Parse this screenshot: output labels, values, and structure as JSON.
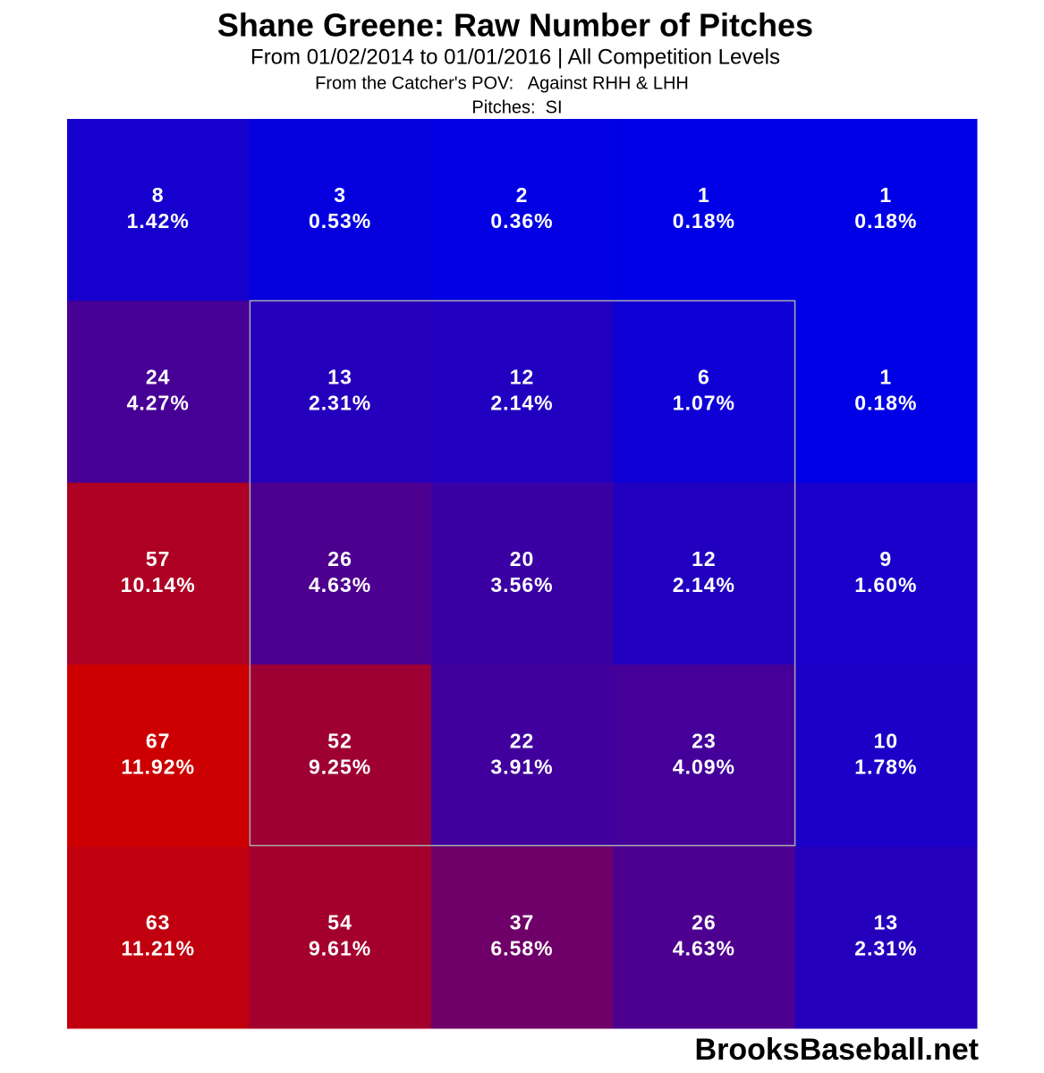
{
  "chart_data": {
    "type": "heatmap",
    "title": "Shane Greene: Raw Number of Pitches",
    "subtitle": "From 01/02/2014 to 01/01/2016 | All Competition Levels",
    "pov": "From the Catcher's POV:   Against RHH & LHH",
    "pitches": "Pitches:  SI",
    "source": "BrooksBaseball.net",
    "colors": [
      "#0000e6",
      "#cc0000"
    ],
    "values": [
      [
        8,
        3,
        2,
        1,
        1
      ],
      [
        24,
        13,
        12,
        6,
        1
      ],
      [
        57,
        26,
        20,
        12,
        9
      ],
      [
        67,
        52,
        22,
        23,
        10
      ],
      [
        63,
        54,
        37,
        26,
        13
      ]
    ],
    "percentages": [
      [
        1.42,
        0.53,
        0.36,
        0.18,
        0.18
      ],
      [
        4.27,
        2.31,
        2.14,
        1.07,
        0.18
      ],
      [
        10.14,
        4.63,
        3.56,
        2.14,
        1.6
      ],
      [
        11.92,
        9.25,
        3.91,
        4.09,
        1.78
      ],
      [
        11.21,
        9.61,
        6.58,
        4.63,
        2.31
      ]
    ],
    "percentage_labels": [
      [
        "1.42%",
        "0.53%",
        "0.36%",
        "0.18%",
        "0.18%"
      ],
      [
        "4.27%",
        "2.31%",
        "2.14%",
        "1.07%",
        "0.18%"
      ],
      [
        "10.14%",
        "4.63%",
        "3.56%",
        "2.14%",
        "1.60%"
      ],
      [
        "11.92%",
        "9.25%",
        "3.91%",
        "4.09%",
        "1.78%"
      ],
      [
        "11.21%",
        "9.61%",
        "6.58%",
        "4.63%",
        "2.31%"
      ]
    ]
  }
}
